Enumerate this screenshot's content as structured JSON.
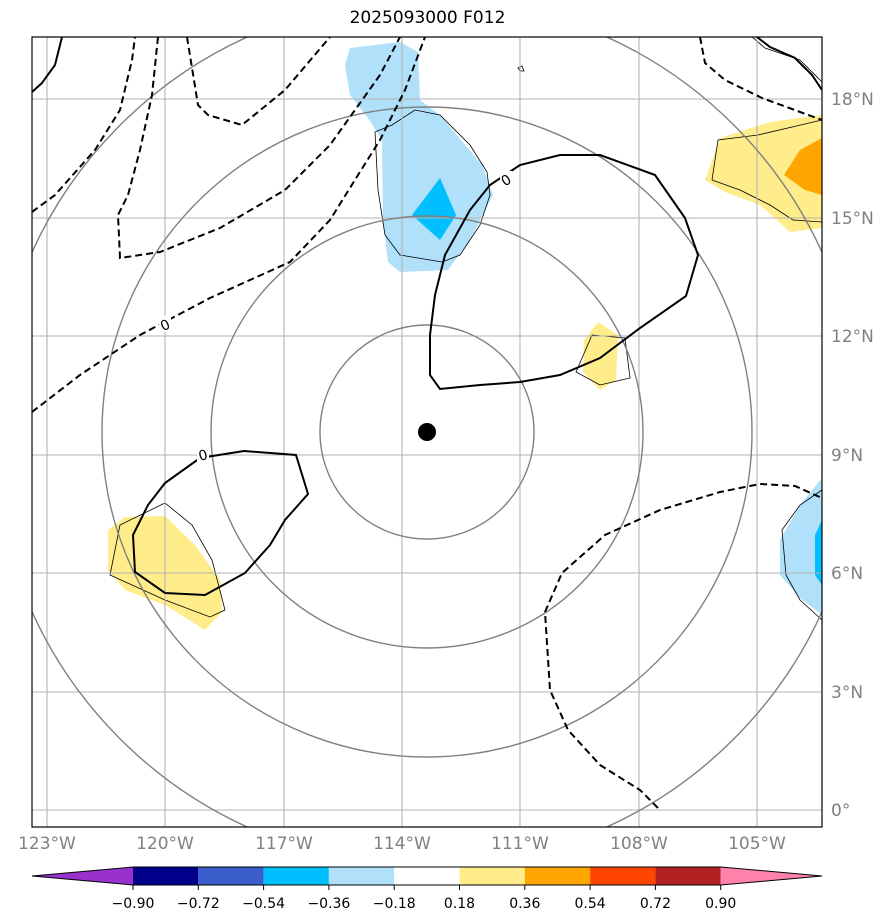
{
  "title": "2025093000 F012",
  "map": {
    "lon_labels": [
      "123°W",
      "120°W",
      "117°W",
      "114°W",
      "111°W",
      "108°W",
      "105°W"
    ],
    "lat_labels": [
      "18°N",
      "15°N",
      "12°N",
      "9°N",
      "6°N",
      "3°N",
      "0°"
    ],
    "contour_zero_label": "0",
    "center_marker": "storm-center-dot"
  },
  "colorbar": {
    "ticks": [
      "−0.90",
      "−0.72",
      "−0.54",
      "−0.36",
      "−0.18",
      "0.18",
      "0.36",
      "0.54",
      "0.72",
      "0.90"
    ],
    "colors": {
      "under": "#9932cc",
      "bins": [
        "#00008b",
        "#3a5fcd",
        "#00bfff",
        "#b0e0fa",
        "#ffffff",
        "#ffec8b",
        "#ffa500",
        "#ff4500",
        "#b22222"
      ],
      "over": "#ff82ab"
    }
  }
}
